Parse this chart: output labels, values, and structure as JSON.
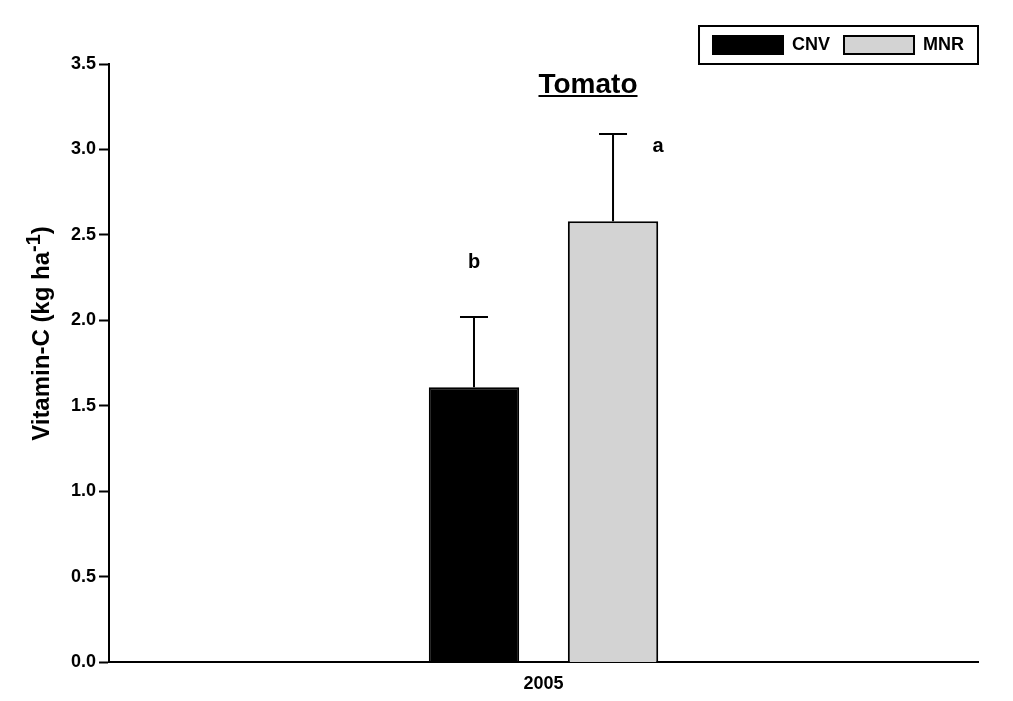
{
  "chart_data": {
    "type": "bar",
    "title": "Tomato",
    "ylabel": "Vitamin-C (kg ha$^{-1}$)",
    "categories": [
      "2005"
    ],
    "series": [
      {
        "name": "CNV",
        "color": "#000000",
        "values": [
          1.61
        ],
        "errors": [
          [
            1.61,
            2.02
          ]
        ]
      },
      {
        "name": "MNR",
        "color": "#d3d3d3",
        "values": [
          2.58
        ],
        "errors": [
          [
            2.58,
            3.09
          ]
        ]
      }
    ],
    "annotations": [
      "b",
      "a"
    ],
    "ylim": [
      0,
      3.5
    ],
    "yticks": [
      {
        "value": 0,
        "label": "0.0"
      },
      {
        "value": 0.5,
        "label": "0.5"
      },
      {
        "value": 1,
        "label": "1.0"
      },
      {
        "value": 1.5,
        "label": "1.5"
      },
      {
        "value": 2,
        "label": "2.0"
      },
      {
        "value": 2.5,
        "label": "2.5"
      },
      {
        "value": 3,
        "label": "3.0"
      },
      {
        "value": 3.5,
        "label": "3.5"
      }
    ],
    "grid": false,
    "legend": "top right"
  }
}
